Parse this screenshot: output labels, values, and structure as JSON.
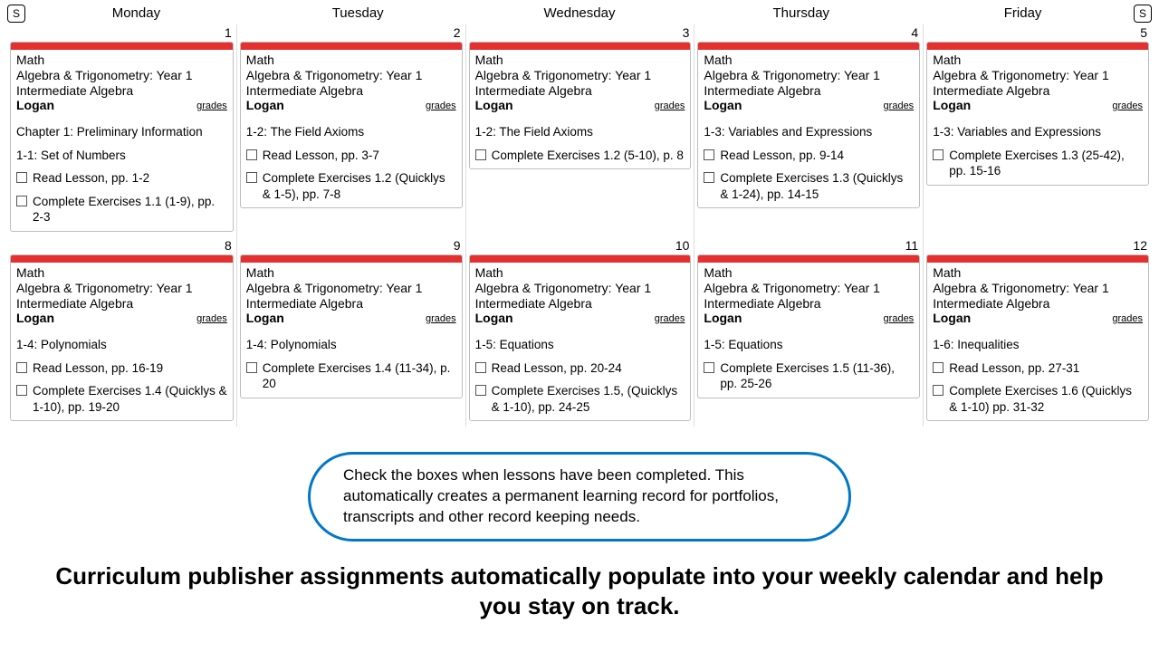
{
  "nav": {
    "left_btn": "S",
    "right_btn": "S"
  },
  "days": [
    "Monday",
    "Tuesday",
    "Wednesday",
    "Thursday",
    "Friday"
  ],
  "accent_color": "#e53030",
  "grades_label": "grades",
  "cells": [
    {
      "num": 1,
      "subject": "Math",
      "course": "Algebra & Trigonometry: Year 1 Intermediate Algebra",
      "student": "Logan",
      "section": "Chapter 1: Preliminary Information",
      "section2": "1-1: Set of Numbers",
      "tasks": [
        "Read Lesson, pp. 1-2",
        "Complete Exercises 1.1 (1-9), pp. 2-3"
      ]
    },
    {
      "num": 2,
      "subject": "Math",
      "course": "Algebra & Trigonometry: Year 1 Intermediate Algebra",
      "student": "Logan",
      "section": "1-2: The Field Axioms",
      "tasks": [
        "Read Lesson, pp. 3-7",
        "Complete Exercises 1.2 (Quicklys & 1-5), pp. 7-8"
      ]
    },
    {
      "num": 3,
      "subject": "Math",
      "course": "Algebra & Trigonometry: Year 1 Intermediate Algebra",
      "student": "Logan",
      "section": "1-2: The Field Axioms",
      "tasks": [
        "Complete Exercises 1.2 (5-10), p. 8"
      ]
    },
    {
      "num": 4,
      "subject": "Math",
      "course": "Algebra & Trigonometry: Year 1 Intermediate Algebra",
      "student": "Logan",
      "section": "1-3: Variables and Expressions",
      "tasks": [
        "Read Lesson, pp. 9-14",
        "Complete Exercises 1.3 (Quicklys & 1-24), pp. 14-15"
      ]
    },
    {
      "num": 5,
      "subject": "Math",
      "course": "Algebra & Trigonometry: Year 1 Intermediate Algebra",
      "student": "Logan",
      "section": "1-3: Variables and Expressions",
      "tasks": [
        "Complete Exercises 1.3 (25-42), pp. 15-16"
      ]
    },
    {
      "num": 8,
      "subject": "Math",
      "course": "Algebra & Trigonometry: Year 1 Intermediate Algebra",
      "student": "Logan",
      "section": "1-4: Polynomials",
      "tasks": [
        "Read Lesson, pp. 16-19",
        "Complete Exercises 1.4 (Quicklys & 1-10), pp. 19-20"
      ]
    },
    {
      "num": 9,
      "subject": "Math",
      "course": "Algebra & Trigonometry: Year 1 Intermediate Algebra",
      "student": "Logan",
      "section": "1-4: Polynomials",
      "tasks": [
        "Complete Exercises 1.4 (11-34), p. 20"
      ]
    },
    {
      "num": 10,
      "subject": "Math",
      "course": "Algebra & Trigonometry: Year 1 Intermediate Algebra",
      "student": "Logan",
      "section": "1-5: Equations",
      "tasks": [
        "Read Lesson, pp. 20-24",
        "Complete Exercises 1.5, (Quicklys & 1-10), pp. 24-25"
      ]
    },
    {
      "num": 11,
      "subject": "Math",
      "course": "Algebra & Trigonometry: Year 1 Intermediate Algebra",
      "student": "Logan",
      "section": "1-5: Equations",
      "tasks": [
        "Complete Exercises 1.5 (11-36), pp. 25-26"
      ]
    },
    {
      "num": 12,
      "subject": "Math",
      "course": "Algebra & Trigonometry: Year 1 Intermediate Algebra",
      "student": "Logan",
      "section": "1-6: Inequalities",
      "tasks": [
        "Read Lesson, pp. 27-31",
        "Complete Exercises 1.6 (Quicklys & 1-10) pp. 31-32"
      ]
    }
  ],
  "callout": "Check the boxes when lessons have been completed. This automatically creates a permanent learning record for portfolios, transcripts and other record keeping needs.",
  "tagline": "Curriculum publisher assignments automatically populate into your weekly calendar and help you stay on track."
}
